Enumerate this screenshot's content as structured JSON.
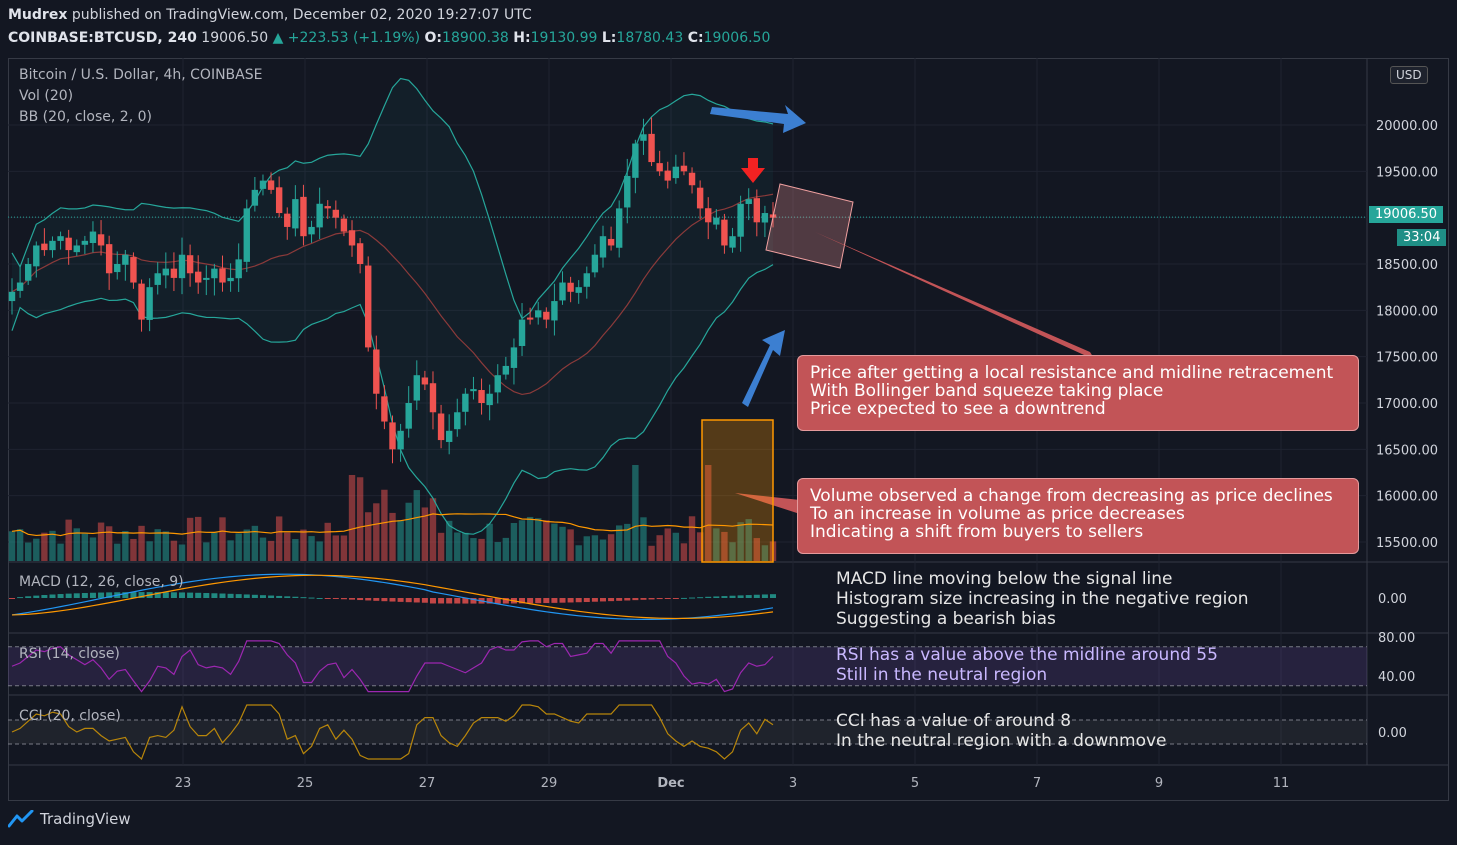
{
  "header": {
    "author": "Mudrex",
    "published": "published on TradingView.com, December 02, 2020 19:27:07 UTC",
    "symbol": "COINBASE:BTCUSD, 240",
    "last": "19006.50",
    "change": "▲ +223.53 (+1.19%)",
    "o_label": "O:",
    "o_value": "18900.38",
    "h_label": "H:",
    "h_value": "19130.99",
    "l_label": "L:",
    "l_value": "18780.43",
    "c_label": "C:",
    "c_value": "19006.50"
  },
  "legend": {
    "title": "Bitcoin / U.S. Dollar, 4h, COINBASE",
    "vol": "Vol (20)",
    "bb": "BB (20, close, 2, 0)",
    "macd": "MACD (12, 26, close, 9)",
    "rsi": "RSI (14, close)",
    "cci": "CCI (20, close)"
  },
  "price_axis": {
    "currency": "USD",
    "current": "19006.50",
    "countdown": "33:04",
    "ticks": [
      "20000.00",
      "19500.00",
      "19000.00",
      "18500.00",
      "18000.00",
      "17500.00",
      "17000.00",
      "16500.00",
      "16000.00",
      "15500.00"
    ],
    "macd_tick": "0.00",
    "rsi_ticks": [
      "80.00",
      "40.00"
    ],
    "cci_tick": "0.00"
  },
  "time_axis": [
    "23",
    "25",
    "27",
    "29",
    "Dec",
    "3",
    "5",
    "7",
    "9",
    "11"
  ],
  "annotations": {
    "note1": [
      "Price after getting a local resistance and midline retracement",
      "With Bollinger band squeeze taking place",
      "Price expected to see a downtrend"
    ],
    "note2": [
      "Volume observed a change from decreasing as price declines",
      "To an increase in volume as price decreases",
      "Indicating a shift from buyers to sellers"
    ],
    "macd": [
      "MACD line moving below the signal line",
      "Histogram size increasing in the negative region",
      "Suggesting a bearish bias"
    ],
    "rsi": [
      "RSI has a value above the midline around 55",
      "Still in the neutral region"
    ],
    "cci": [
      "CCI has a value of around 8",
      "In the neutral region with a downmove"
    ]
  },
  "footer": {
    "brand": "TradingView"
  },
  "colors": {
    "up": "#26a69a",
    "down": "#ef5350",
    "bb": "#26a69a",
    "basis": "#8b3a3a",
    "vol_ma": "#ff9800",
    "macd": "#2196f3",
    "signal": "#ff9800",
    "rsi": "#9c27b0",
    "cci": "#b8860b",
    "note": "#c25457"
  },
  "chart_data": {
    "type": "candlestick",
    "title": "Bitcoin / U.S. Dollar, 4h, COINBASE",
    "y_range": [
      15300,
      20400
    ],
    "x_categories": [
      "23",
      "25",
      "27",
      "29",
      "Dec",
      "3",
      "5",
      "7",
      "9",
      "11"
    ],
    "close_series": [
      18200,
      18300,
      18500,
      18700,
      18650,
      18750,
      18800,
      18650,
      18700,
      18750,
      18850,
      18700,
      18400,
      18500,
      18600,
      18300,
      17900,
      18250,
      18400,
      18450,
      18350,
      18600,
      18400,
      18300,
      18350,
      18450,
      18300,
      18350,
      18550,
      19100,
      19300,
      19400,
      19300,
      19050,
      18900,
      19200,
      18800,
      18900,
      19150,
      19100,
      19000,
      18850,
      18700,
      18500,
      17600,
      17100,
      16800,
      16500,
      16700,
      17000,
      17300,
      17200,
      16900,
      16600,
      16700,
      16900,
      17100,
      17150,
      17000,
      17100,
      17300,
      17400,
      17600,
      17900,
      17900,
      18000,
      17900,
      18100,
      18300,
      18200,
      18250,
      18400,
      18600,
      18800,
      18700,
      19100,
      19450,
      19800,
      19900,
      19600,
      19500,
      19400,
      19550,
      19500,
      19350,
      19100,
      18950,
      19000,
      18700,
      18800,
      19150,
      19200,
      18950,
      19050,
      19000
    ]
  }
}
